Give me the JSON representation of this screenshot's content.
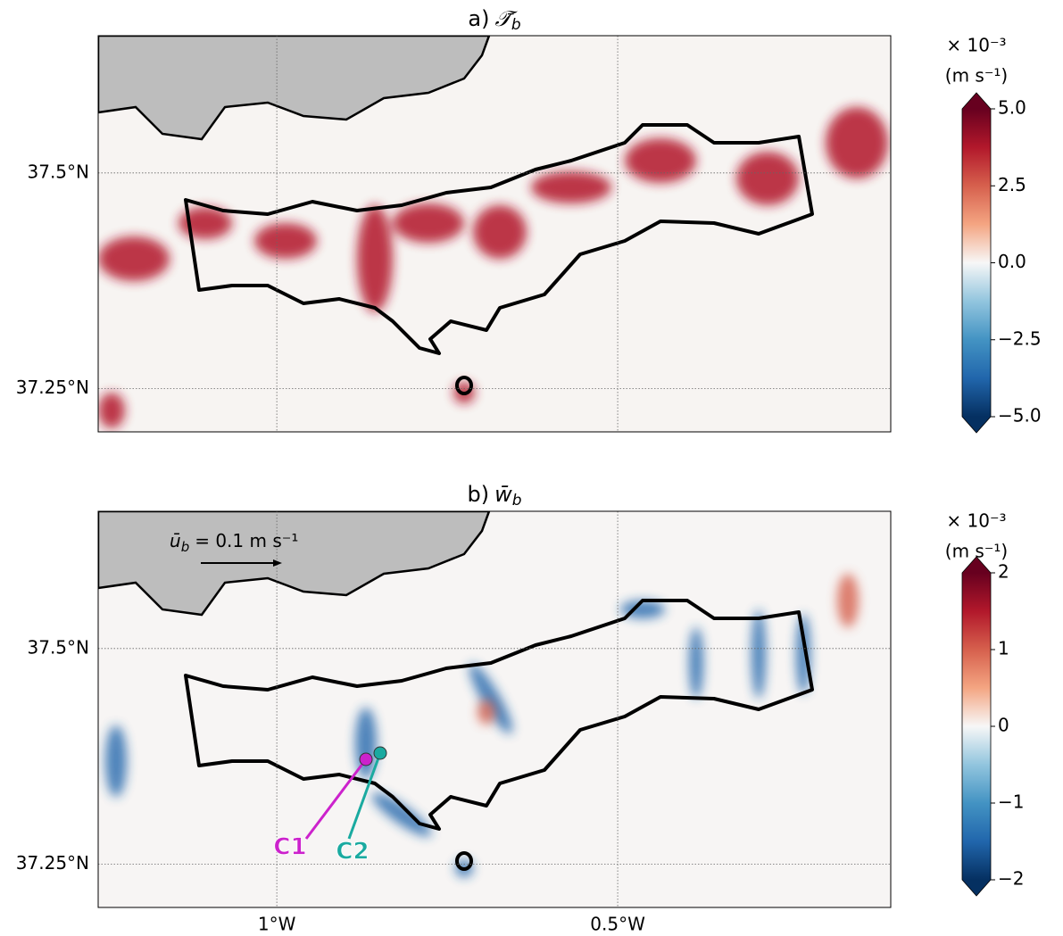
{
  "chart_data": [
    {
      "type": "map",
      "title": {
        "prefix": "a)",
        "symbol": "𝒯̄",
        "subscript": "b"
      },
      "xlim": [
        -1.262,
        -0.0995
      ],
      "ylim": [
        37.2,
        37.659
      ],
      "yticks": [
        {
          "value": 37.5,
          "label": "37.5°N"
        },
        {
          "value": 37.25,
          "label": "37.25°N"
        }
      ],
      "grid": true,
      "colorbar": {
        "scale": "× 10⁻³",
        "units": "(m s⁻¹)",
        "lim": [
          -5,
          5
        ],
        "ticks": [
          {
            "value": 5,
            "label": "5.0"
          },
          {
            "value": 2.5,
            "label": "2.5"
          },
          {
            "value": 0,
            "label": "0.0"
          },
          {
            "value": -2.5,
            "label": "−2.5"
          },
          {
            "value": -5,
            "label": "−5.0"
          }
        ],
        "colormap": [
          "#053061",
          "#2166ac",
          "#4393c3",
          "#92c5de",
          "#f7f7f7",
          "#f4a582",
          "#d6604d",
          "#b2182b",
          "#67001f"
        ]
      }
    },
    {
      "type": "map",
      "title": {
        "prefix": "b)",
        "symbol": "w̄",
        "subscript": "b"
      },
      "xlim": [
        -1.262,
        -0.0995
      ],
      "ylim": [
        37.2,
        37.659
      ],
      "xticks": [
        {
          "value": -1,
          "label": "1°W"
        },
        {
          "value": -0.5,
          "label": "0.5°W"
        }
      ],
      "yticks": [
        {
          "value": 37.5,
          "label": "37.5°N"
        },
        {
          "value": 37.25,
          "label": "37.25°N"
        }
      ],
      "grid": true,
      "vector_key": {
        "symbol": "ū",
        "subscript": "b",
        "text": "= 0.1 m s⁻¹"
      },
      "markers": [
        {
          "name": "C1",
          "color": "#cc22cc"
        },
        {
          "name": "C2",
          "color": "#1aaaa0"
        }
      ],
      "colorbar": {
        "scale": "× 10⁻³",
        "units": "(m s⁻¹)",
        "lim": [
          -2,
          2
        ],
        "ticks": [
          2,
          1,
          0,
          {
            "value": -1,
            "label": "−1"
          },
          {
            "value": -2,
            "label": "−2"
          }
        ],
        "colormap": [
          "#053061",
          "#2166ac",
          "#4393c3",
          "#92c5de",
          "#f7f7f7",
          "#f4a582",
          "#d6604d",
          "#b2182b",
          "#67001f"
        ]
      }
    }
  ]
}
